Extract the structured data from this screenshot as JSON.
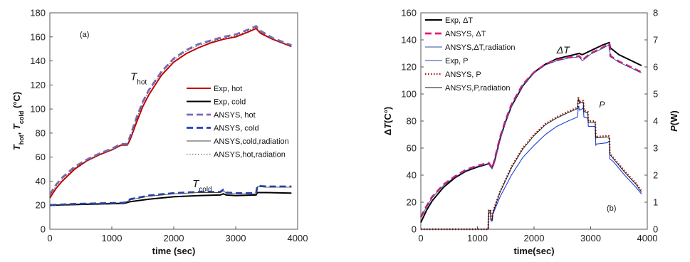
{
  "chart_data": [
    {
      "type": "line",
      "panel_label": "(a)",
      "xlabel": "time (sec)",
      "ylabel": {
        "parts": [
          {
            "text": "T",
            "italic": true
          },
          {
            "text": "hot",
            "sub": true
          },
          {
            "text": ", "
          },
          {
            "text": "T",
            "italic": true
          },
          {
            "text": "cold",
            "sub": true
          },
          {
            "text": " (°C)"
          }
        ]
      },
      "xlim": [
        0,
        4000
      ],
      "ylim": [
        0,
        180
      ],
      "xticks": [
        0,
        1000,
        2000,
        3000,
        4000
      ],
      "yticks": [
        0,
        20,
        40,
        60,
        80,
        100,
        120,
        140,
        160,
        180
      ],
      "grid": false,
      "legend_position": "center-right",
      "annotations": [
        {
          "main": "T",
          "sub": "hot",
          "x": 1300,
          "y": 124
        },
        {
          "main": "T",
          "sub": "cold",
          "x": 2300,
          "y": 35
        }
      ],
      "series": [
        {
          "name": "Exp, hot",
          "color": "#c00000",
          "style": "solid",
          "width": 2,
          "x": [
            0,
            100,
            200,
            400,
            600,
            800,
            1000,
            1150,
            1250,
            1300,
            1400,
            1500,
            1600,
            1800,
            2000,
            2200,
            2400,
            2600,
            2800,
            3000,
            3200,
            3330,
            3400,
            3600,
            3800,
            3900
          ],
          "y": [
            26,
            34,
            40,
            50,
            57,
            62,
            66,
            70,
            70,
            75,
            89,
            102,
            112,
            128,
            139,
            146,
            151,
            155,
            158,
            160,
            164,
            167,
            163,
            158,
            154,
            152
          ]
        },
        {
          "name": "Exp, cold",
          "color": "#000000",
          "style": "solid",
          "width": 2,
          "x": [
            0,
            400,
            800,
            1200,
            1300,
            1600,
            2000,
            2400,
            2750,
            2800,
            2850,
            3000,
            3330,
            3350,
            3500,
            3900
          ],
          "y": [
            20,
            20.5,
            21,
            21.5,
            23,
            25,
            27,
            28,
            28.5,
            29.5,
            28.5,
            28,
            28.5,
            30.5,
            30.5,
            30
          ]
        },
        {
          "name": "ANSYS, hot",
          "color": "#7b6bb5",
          "style": "dash",
          "width": 2.8,
          "x": [
            0,
            100,
            200,
            400,
            600,
            800,
            1000,
            1150,
            1250,
            1300,
            1400,
            1500,
            1600,
            1800,
            2000,
            2200,
            2400,
            2600,
            2800,
            3000,
            3200,
            3330,
            3400,
            3600,
            3800,
            3900
          ],
          "y": [
            29,
            37,
            43,
            52,
            58,
            63,
            67,
            71,
            71,
            78,
            93,
            106,
            116,
            131,
            142,
            149,
            154,
            157,
            160,
            162,
            166,
            169,
            165,
            159,
            155,
            153
          ]
        },
        {
          "name": "ANSYS, cold",
          "color": "#1f3fbf",
          "style": "dash",
          "width": 2.8,
          "x": [
            0,
            400,
            800,
            1200,
            1300,
            1600,
            2000,
            2400,
            2750,
            2800,
            2850,
            3000,
            3330,
            3350,
            3500,
            3900
          ],
          "y": [
            20,
            21,
            21.5,
            22,
            25,
            28,
            30,
            31,
            31,
            33,
            30.5,
            30,
            30,
            36,
            35.5,
            35.5
          ]
        },
        {
          "name": "ANSYS,cold,radiation",
          "color": "#444444",
          "style": "solid",
          "width": 0.9,
          "x": [
            0,
            400,
            800,
            1200,
            1300,
            1600,
            2000,
            2400,
            2750,
            2800,
            2850,
            3000,
            3330,
            3350,
            3500,
            3900
          ],
          "y": [
            20,
            21,
            21.5,
            22,
            24.5,
            27.5,
            29.5,
            30.5,
            30.5,
            32,
            30,
            29.5,
            29.5,
            35.5,
            35,
            35
          ]
        },
        {
          "name": "ANSYS,hot,radiation",
          "color": "#444444",
          "style": "dot",
          "width": 0.9,
          "x": [
            0,
            100,
            200,
            400,
            600,
            800,
            1000,
            1150,
            1250,
            1300,
            1400,
            1500,
            1600,
            1800,
            2000,
            2200,
            2400,
            2600,
            2800,
            3000,
            3200,
            3330,
            3400,
            3600,
            3800,
            3900
          ],
          "y": [
            28,
            36,
            42,
            51,
            57,
            62,
            66,
            70,
            70,
            77,
            92,
            105,
            115,
            130,
            141,
            148,
            153,
            156,
            159,
            161,
            165,
            168,
            164,
            158,
            154,
            152
          ]
        }
      ]
    },
    {
      "type": "line",
      "panel_label": "(b)",
      "xlabel": "time(sec)",
      "ylabel": {
        "parts": [
          {
            "text": "Δ"
          },
          {
            "text": "T",
            "italic": true
          },
          {
            "text": "(C°)"
          }
        ]
      },
      "ylabel_right": {
        "parts": [
          {
            "text": "P",
            "italic": true
          },
          {
            "text": "(W)"
          }
        ]
      },
      "xlim": [
        0,
        4000
      ],
      "ylim": [
        0,
        160
      ],
      "ylim_right": [
        0,
        8
      ],
      "xticks": [
        0,
        1000,
        2000,
        3000,
        4000
      ],
      "yticks": [
        0,
        20,
        40,
        60,
        80,
        100,
        120,
        140,
        160
      ],
      "yticks_right": [
        0,
        1,
        2,
        3,
        4,
        5,
        6,
        7,
        8
      ],
      "grid": false,
      "legend_position": "top-left",
      "annotations": [
        {
          "main": "ΔT",
          "sub": "",
          "x": 2400,
          "y": 130
        },
        {
          "main": "P",
          "sub": "",
          "x": 3150,
          "y": 90
        }
      ],
      "series": [
        {
          "name": "Exp, ΔT",
          "color": "#000000",
          "style": "solid",
          "width": 2,
          "axis": "left",
          "x": [
            0,
            100,
            200,
            400,
            600,
            800,
            1000,
            1200,
            1260,
            1300,
            1400,
            1500,
            1600,
            1800,
            2000,
            2200,
            2400,
            2600,
            2800,
            2850,
            3000,
            3200,
            3330,
            3350,
            3500,
            3700,
            3900
          ],
          "y": [
            5,
            14,
            21,
            31,
            38,
            43,
            46,
            48.5,
            46,
            50,
            67,
            80,
            91,
            106,
            116,
            122,
            126,
            128,
            130,
            129,
            132,
            136,
            138,
            134,
            129,
            125,
            121
          ]
        },
        {
          "name": "ANSYS, ΔT",
          "color": "#e0206e",
          "style": "dash",
          "width": 2.8,
          "axis": "left",
          "x": [
            0,
            100,
            200,
            400,
            600,
            800,
            1000,
            1200,
            1260,
            1300,
            1400,
            1500,
            1600,
            1800,
            2000,
            2200,
            2400,
            2600,
            2800,
            2850,
            3000,
            3200,
            3330,
            3350,
            3500,
            3700,
            3900
          ],
          "y": [
            9,
            17,
            24,
            33,
            39,
            44,
            47,
            49,
            45,
            51,
            68,
            81,
            92,
            107,
            116,
            122,
            125,
            127,
            128,
            125,
            130,
            134,
            137,
            128,
            124,
            120,
            116
          ]
        },
        {
          "name": "ANSYS,ΔT,radiation",
          "color": "#3344aa",
          "style": "solid",
          "width": 0.9,
          "axis": "left",
          "x": [
            0,
            100,
            200,
            400,
            600,
            800,
            1000,
            1200,
            1260,
            1300,
            1400,
            1500,
            1600,
            1800,
            2000,
            2200,
            2400,
            2600,
            2800,
            2850,
            3000,
            3200,
            3330,
            3350,
            3500,
            3700,
            3900
          ],
          "y": [
            8.5,
            16.5,
            23.5,
            32.5,
            38.5,
            43.5,
            46.5,
            48.5,
            44.5,
            50.5,
            67.5,
            80.5,
            91.5,
            106.5,
            115.5,
            121.5,
            124.5,
            126.5,
            127.5,
            124.5,
            129.5,
            133.5,
            136.5,
            127.5,
            123.5,
            119.5,
            115.5
          ]
        },
        {
          "name": "Exp, P",
          "color": "#1f3fdf",
          "style": "solid",
          "width": 1.1,
          "axis": "right",
          "x": [
            0,
            1190,
            1200,
            1230,
            1240,
            1260,
            1270,
            1300,
            1400,
            1500,
            1600,
            1800,
            2000,
            2200,
            2400,
            2600,
            2770,
            2780,
            2790,
            2800,
            2850,
            2870,
            2880,
            2950,
            2960,
            3000,
            3080,
            3090,
            3100,
            3300,
            3320,
            3330,
            3340,
            3400,
            3600,
            3800,
            3900
          ],
          "y": [
            0,
            0,
            0.6,
            0.65,
            0.3,
            0.3,
            0.55,
            0.7,
            1.2,
            1.6,
            2.0,
            2.65,
            3.1,
            3.5,
            3.8,
            4.0,
            4.15,
            4.5,
            4.55,
            4.4,
            4.45,
            4.5,
            4.15,
            4.1,
            3.8,
            3.8,
            3.8,
            3.1,
            3.15,
            3.2,
            3.25,
            3.25,
            2.6,
            2.5,
            2.0,
            1.55,
            1.3
          ]
        },
        {
          "name": "ANSYS, P",
          "color": "#a01818",
          "style": "dot",
          "width": 2.4,
          "axis": "right",
          "x": [
            0,
            1190,
            1200,
            1230,
            1240,
            1260,
            1270,
            1300,
            1400,
            1500,
            1600,
            1800,
            2000,
            2200,
            2400,
            2600,
            2770,
            2780,
            2790,
            2800,
            2850,
            2870,
            2880,
            2950,
            2960,
            3000,
            3080,
            3090,
            3100,
            3300,
            3320,
            3330,
            3340,
            3400,
            3600,
            3800,
            3900
          ],
          "y": [
            0,
            0,
            0.7,
            0.72,
            0.35,
            0.35,
            0.6,
            0.8,
            1.4,
            1.85,
            2.3,
            3.0,
            3.5,
            3.9,
            4.15,
            4.35,
            4.5,
            4.85,
            4.85,
            4.7,
            4.75,
            4.75,
            4.4,
            4.35,
            4.0,
            4.0,
            4.0,
            3.4,
            3.42,
            3.45,
            3.45,
            3.4,
            2.8,
            2.65,
            2.15,
            1.7,
            1.4
          ]
        },
        {
          "name": "ANSYS,P,radiation",
          "color": "#111111",
          "style": "solid",
          "width": 0.9,
          "axis": "right",
          "x": [
            0,
            1190,
            1200,
            1230,
            1240,
            1260,
            1270,
            1300,
            1400,
            1500,
            1600,
            1800,
            2000,
            2200,
            2400,
            2600,
            2770,
            2780,
            2790,
            2800,
            2850,
            2870,
            2880,
            2950,
            2960,
            3000,
            3080,
            3090,
            3100,
            3300,
            3320,
            3330,
            3340,
            3400,
            3600,
            3800,
            3900
          ],
          "y": [
            0,
            0,
            0.68,
            0.7,
            0.34,
            0.34,
            0.58,
            0.78,
            1.37,
            1.82,
            2.27,
            2.96,
            3.46,
            3.86,
            4.11,
            4.31,
            4.46,
            4.8,
            4.8,
            4.65,
            4.7,
            4.7,
            4.35,
            4.3,
            3.95,
            3.95,
            3.95,
            3.36,
            3.38,
            3.41,
            3.41,
            3.36,
            2.76,
            2.61,
            2.11,
            1.66,
            1.36
          ]
        }
      ]
    }
  ]
}
